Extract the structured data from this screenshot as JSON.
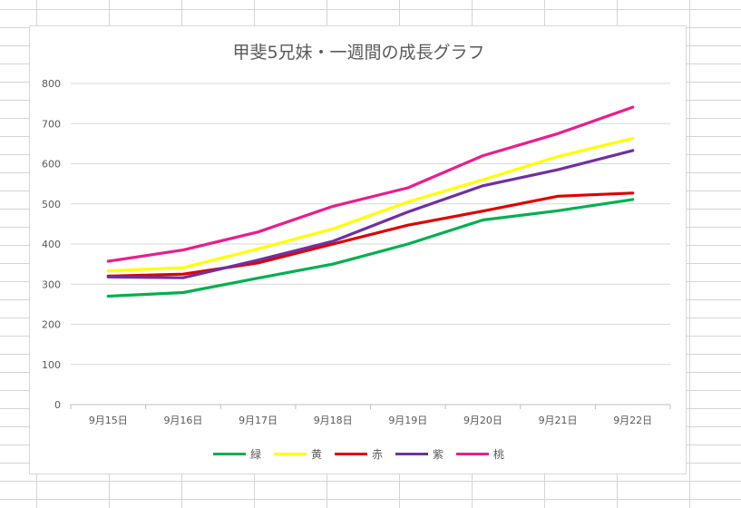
{
  "chart_data": {
    "type": "line",
    "title": "甲斐5兄妹・一週間の成長グラフ",
    "xlabel": "",
    "ylabel": "",
    "categories": [
      "9月15日",
      "9月16日",
      "9月17日",
      "9月18日",
      "9月19日",
      "9月20日",
      "9月21日",
      "9月22日"
    ],
    "ylim": [
      0,
      800
    ],
    "yticks": [
      "0",
      "100",
      "200",
      "300",
      "400",
      "500",
      "600",
      "700",
      "800"
    ],
    "grid": true,
    "legend_position": "bottom",
    "series": [
      {
        "name": "緑",
        "color": "#00b050",
        "values": [
          270,
          279,
          315,
          350,
          400,
          460,
          483,
          511
        ]
      },
      {
        "name": "黄",
        "color": "#ffff00",
        "values": [
          333,
          341,
          388,
          438,
          505,
          560,
          618,
          663
        ]
      },
      {
        "name": "赤",
        "color": "#e00000",
        "values": [
          320,
          325,
          353,
          400,
          447,
          482,
          519,
          527
        ]
      },
      {
        "name": "紫",
        "color": "#7030a0",
        "values": [
          318,
          316,
          360,
          407,
          480,
          545,
          585,
          633
        ]
      },
      {
        "name": "桃",
        "color": "#e91e8c",
        "values": [
          357,
          385,
          430,
          494,
          540,
          620,
          675,
          741
        ]
      }
    ]
  }
}
